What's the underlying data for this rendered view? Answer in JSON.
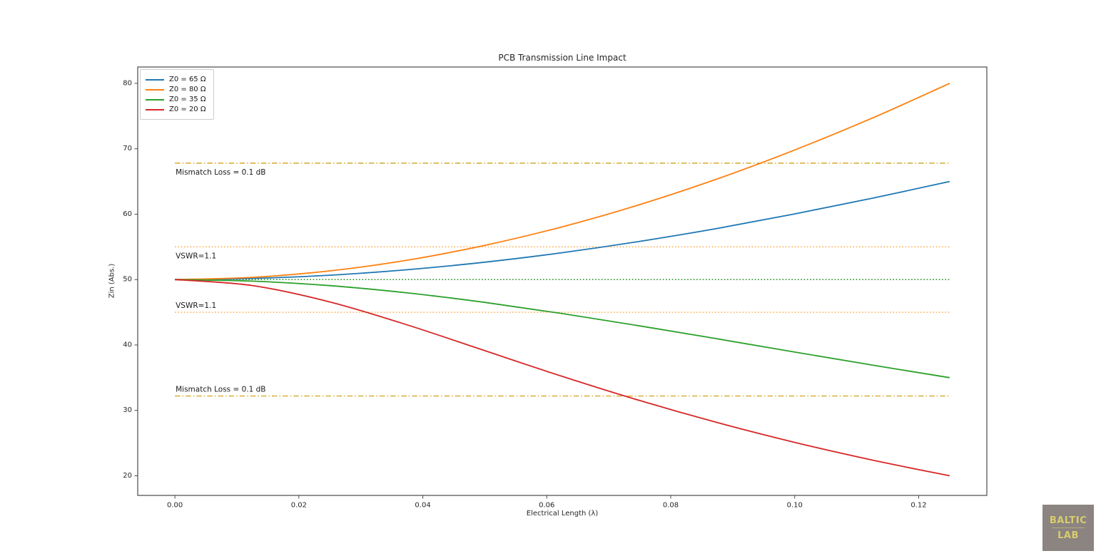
{
  "chart_data": {
    "type": "line",
    "title": "PCB Transmission Line Impact",
    "xlabel": "Electrical Length (λ)",
    "ylabel": "Zin (Abs.)",
    "xlim": [
      -0.006,
      0.131
    ],
    "ylim": [
      17,
      82.5
    ],
    "grid": false,
    "legend_position": "upper left",
    "x_ticks": [
      0,
      0.02,
      0.04,
      0.06,
      0.08,
      0.1,
      0.12
    ],
    "x_tick_labels": [
      "0.00",
      "0.02",
      "0.04",
      "0.06",
      "0.08",
      "0.10",
      "0.12"
    ],
    "y_ticks": [
      20,
      30,
      40,
      50,
      60,
      70,
      80
    ],
    "y_tick_labels": [
      "20",
      "30",
      "40",
      "50",
      "60",
      "70",
      "80"
    ],
    "x": [
      0,
      0.0125,
      0.025,
      0.0375,
      0.05,
      0.0625,
      0.075,
      0.0875,
      0.1,
      0.1125,
      0.125
    ],
    "series": [
      {
        "name": "Z0 = 65 Ω",
        "color": "#1f77b4",
        "values": [
          50,
          50.17,
          50.67,
          51.51,
          52.66,
          54.11,
          55.84,
          57.82,
          60.04,
          62.44,
          65
        ]
      },
      {
        "name": "Z0 = 80 Ω",
        "color": "#ff7f0e",
        "values": [
          50,
          50.34,
          51.33,
          52.97,
          55.23,
          58.07,
          61.47,
          65.39,
          69.81,
          74.69,
          80
        ]
      },
      {
        "name": "Z0 = 35 Ω",
        "color": "#2ca02c",
        "values": [
          50,
          49.76,
          49.07,
          47.96,
          46.51,
          44.8,
          42.92,
          40.94,
          38.92,
          36.93,
          35
        ]
      },
      {
        "name": "Z0 = 20 Ω",
        "color": "#d62728",
        "values": [
          50,
          49.08,
          46.58,
          43.07,
          39.13,
          35.2,
          31.51,
          28.14,
          25.11,
          22.41,
          20
        ]
      }
    ],
    "reference_lines": [
      {
        "y": 67.8,
        "style": "dashdot",
        "color": "#d4aa2a",
        "label": "Mismatch Loss = 0.1 dB",
        "label_side": "below"
      },
      {
        "y": 55,
        "style": "dotted",
        "color": "#ffa436",
        "label": "VSWR=1.1",
        "label_side": "below"
      },
      {
        "y": 50,
        "style": "dotted",
        "color": "#008000",
        "label": "",
        "label_side": "none"
      },
      {
        "y": 45,
        "style": "dotted",
        "color": "#ffa436",
        "label": "VSWR=1.1",
        "label_side": "above"
      },
      {
        "y": 32.2,
        "style": "dashdot",
        "color": "#d4aa2a",
        "label": "Mismatch Loss = 0.1 dB",
        "label_side": "above"
      }
    ]
  },
  "logo": {
    "line1": "BALTIC",
    "line2": "LAB",
    "bg_color": "#8b8481",
    "text_color": "#d9cc6d"
  }
}
